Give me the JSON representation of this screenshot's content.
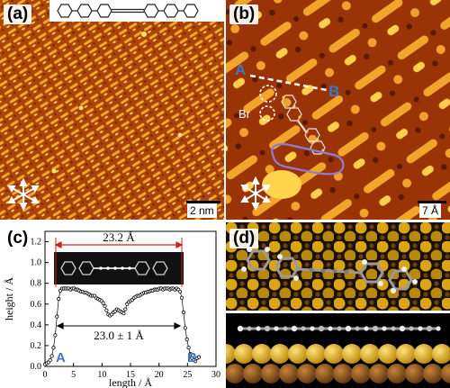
{
  "panels": {
    "a": {
      "label": "(a)",
      "scalebar": "2 nm"
    },
    "b": {
      "label": "(b)",
      "scalebar": "7 Å",
      "marker_a": "A",
      "marker_b": "B",
      "br_label": "Br"
    },
    "c": {
      "label": "(c)"
    },
    "d": {
      "label": "(d)"
    }
  },
  "chart_data": {
    "type": "scatter",
    "xlabel": "length / Å",
    "ylabel": "height / Å",
    "xlim": [
      0,
      30
    ],
    "ylim": [
      0,
      1.3
    ],
    "xticks": [
      0,
      5,
      10,
      15,
      20,
      25,
      30
    ],
    "yticks": [
      0.0,
      0.2,
      0.4,
      0.6,
      0.8,
      1.0,
      1.2
    ],
    "annotation_top": "23.2 Å",
    "annotation_mid": "23.0 ± 1 Å",
    "endpoint_a": "A",
    "endpoint_b": "B",
    "x": [
      0.0,
      0.3,
      0.6,
      0.9,
      1.2,
      1.5,
      1.8,
      2.1,
      2.4,
      2.7,
      3.0,
      3.3,
      3.6,
      3.9,
      4.2,
      4.5,
      4.8,
      5.1,
      5.4,
      5.7,
      6.0,
      6.3,
      6.6,
      6.9,
      7.2,
      7.5,
      7.8,
      8.1,
      8.4,
      8.7,
      9.0,
      9.3,
      9.6,
      9.9,
      10.2,
      10.5,
      10.8,
      11.1,
      11.4,
      11.7,
      12.0,
      12.3,
      12.6,
      12.9,
      13.2,
      13.5,
      13.8,
      14.1,
      14.4,
      14.7,
      15.0,
      15.3,
      15.6,
      15.9,
      16.2,
      16.5,
      16.8,
      17.1,
      17.4,
      17.7,
      18.0,
      18.3,
      18.6,
      18.9,
      19.2,
      19.5,
      19.8,
      20.1,
      20.4,
      20.7,
      21.0,
      21.3,
      21.6,
      21.9,
      22.2,
      22.5,
      22.8,
      23.1,
      23.4,
      23.7,
      24.0,
      24.3,
      24.6,
      24.9,
      25.2,
      25.5,
      25.8,
      26.1,
      26.4,
      26.7,
      27.0
    ],
    "y": [
      0.02,
      0.03,
      0.04,
      0.06,
      0.1,
      0.18,
      0.3,
      0.48,
      0.65,
      0.73,
      0.75,
      0.75,
      0.75,
      0.75,
      0.75,
      0.74,
      0.75,
      0.75,
      0.74,
      0.74,
      0.73,
      0.72,
      0.72,
      0.71,
      0.71,
      0.7,
      0.69,
      0.68,
      0.68,
      0.68,
      0.66,
      0.65,
      0.64,
      0.63,
      0.61,
      0.58,
      0.54,
      0.5,
      0.49,
      0.5,
      0.52,
      0.53,
      0.55,
      0.54,
      0.53,
      0.52,
      0.51,
      0.55,
      0.6,
      0.62,
      0.63,
      0.64,
      0.66,
      0.67,
      0.68,
      0.68,
      0.69,
      0.7,
      0.71,
      0.71,
      0.72,
      0.72,
      0.73,
      0.73,
      0.74,
      0.74,
      0.74,
      0.75,
      0.75,
      0.74,
      0.75,
      0.75,
      0.75,
      0.74,
      0.75,
      0.75,
      0.74,
      0.75,
      0.74,
      0.72,
      0.66,
      0.52,
      0.37,
      0.26,
      0.18,
      0.12,
      0.08,
      0.06,
      0.05,
      0.08,
      0.09
    ]
  }
}
